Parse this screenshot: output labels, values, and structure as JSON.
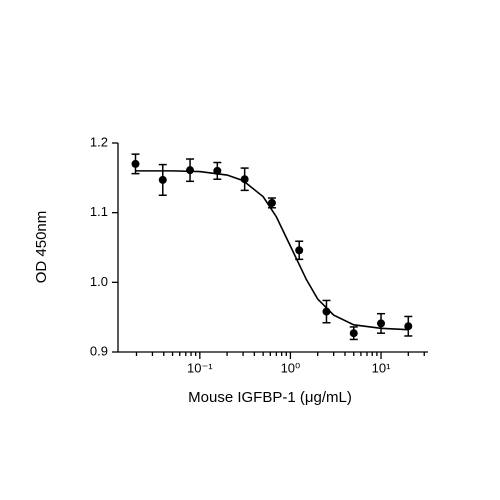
{
  "chart_data": {
    "type": "scatter",
    "xlabel": "Mouse IGFBP-1 (μg/mL)",
    "ylabel": "OD 450nm",
    "log_x": true,
    "color": "#000000",
    "x": [
      0.0195,
      0.039,
      0.078,
      0.156,
      0.3125,
      0.625,
      1.25,
      2.5,
      5,
      10,
      20
    ],
    "values": [
      1.17,
      1.147,
      1.161,
      1.16,
      1.148,
      1.114,
      1.046,
      0.958,
      0.927,
      0.941,
      0.937
    ],
    "errors": [
      0.014,
      0.022,
      0.016,
      0.012,
      0.016,
      0.007,
      0.013,
      0.016,
      0.009,
      0.014,
      0.014
    ],
    "fit": {
      "x": [
        0.0195,
        0.05,
        0.1,
        0.2,
        0.3,
        0.5,
        0.7,
        1,
        1.5,
        2,
        3,
        5,
        10,
        20
      ],
      "values": [
        1.16,
        1.16,
        1.159,
        1.154,
        1.146,
        1.123,
        1.094,
        1.052,
        1.004,
        0.976,
        0.953,
        0.939,
        0.934,
        0.932
      ]
    },
    "xlim": [
      0.0125,
      33
    ],
    "ylim": [
      0.9,
      1.2
    ],
    "xticks": [
      {
        "value": 0.1,
        "label": "10⁻¹"
      },
      {
        "value": 1,
        "label": "10⁰"
      },
      {
        "value": 10,
        "label": "10¹"
      }
    ],
    "xminorticks": [
      0.02,
      0.03,
      0.04,
      0.05,
      0.06,
      0.07,
      0.08,
      0.09,
      0.2,
      0.3,
      0.4,
      0.5,
      0.6,
      0.7,
      0.8,
      0.9,
      2,
      3,
      4,
      5,
      6,
      7,
      8,
      9,
      20,
      30
    ],
    "yticks": [
      0.9,
      {
        "value": 1,
        "label": "1.0"
      },
      1.1,
      1.2
    ]
  }
}
